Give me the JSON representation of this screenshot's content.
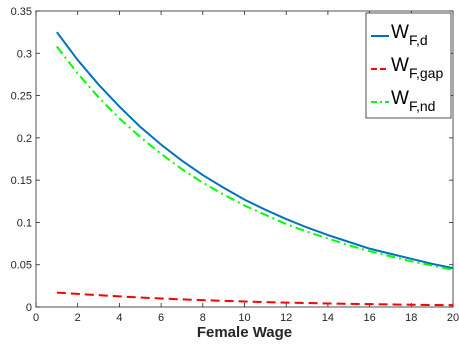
{
  "chart_data": {
    "type": "line",
    "xlabel": "Female Wage",
    "ylabel": "",
    "xlim": [
      0,
      20
    ],
    "ylim": [
      0,
      0.35
    ],
    "x_ticks": [
      0,
      2,
      4,
      6,
      8,
      10,
      12,
      14,
      16,
      18,
      20
    ],
    "y_ticks": [
      0,
      0.05,
      0.1,
      0.15,
      0.2,
      0.25,
      0.3,
      0.35
    ],
    "x_tick_labels": [
      "0",
      "2",
      "4",
      "6",
      "8",
      "10",
      "12",
      "14",
      "16",
      "18",
      "20"
    ],
    "y_tick_labels": [
      "0",
      "0.05",
      "0.1",
      "0.15",
      "0.2",
      "0.25",
      "0.3",
      "0.35"
    ],
    "grid": false,
    "legend_position": "top-right",
    "x": [
      1,
      2,
      3,
      4,
      5,
      6,
      7,
      8,
      9,
      10,
      11,
      12,
      13,
      14,
      15,
      16,
      17,
      18,
      19,
      20
    ],
    "series": [
      {
        "name": "W_{F,d}",
        "legend_main": "W",
        "legend_sub": "F,d",
        "color": "#0072BD",
        "style": "solid",
        "values": [
          0.325,
          0.292,
          0.263,
          0.237,
          0.213,
          0.192,
          0.173,
          0.156,
          0.141,
          0.127,
          0.115,
          0.104,
          0.094,
          0.085,
          0.077,
          0.069,
          0.063,
          0.057,
          0.051,
          0.046
        ]
      },
      {
        "name": "W_{F,gap}",
        "legend_main": "W",
        "legend_sub": "F,gap",
        "color": "#FF0000",
        "style": "dashed",
        "values": [
          0.017,
          0.0155,
          0.014,
          0.0125,
          0.0112,
          0.0101,
          0.009,
          0.0081,
          0.0073,
          0.0065,
          0.0058,
          0.0052,
          0.0047,
          0.0042,
          0.0038,
          0.0034,
          0.003,
          0.0027,
          0.0024,
          0.0022
        ]
      },
      {
        "name": "W_{F,nd}",
        "legend_main": "W",
        "legend_sub": "F,nd",
        "color": "#00FF00",
        "style": "dashdot",
        "values": [
          0.308,
          0.276,
          0.248,
          0.223,
          0.201,
          0.181,
          0.163,
          0.147,
          0.133,
          0.12,
          0.109,
          0.098,
          0.089,
          0.081,
          0.073,
          0.066,
          0.06,
          0.054,
          0.049,
          0.044
        ]
      }
    ]
  }
}
